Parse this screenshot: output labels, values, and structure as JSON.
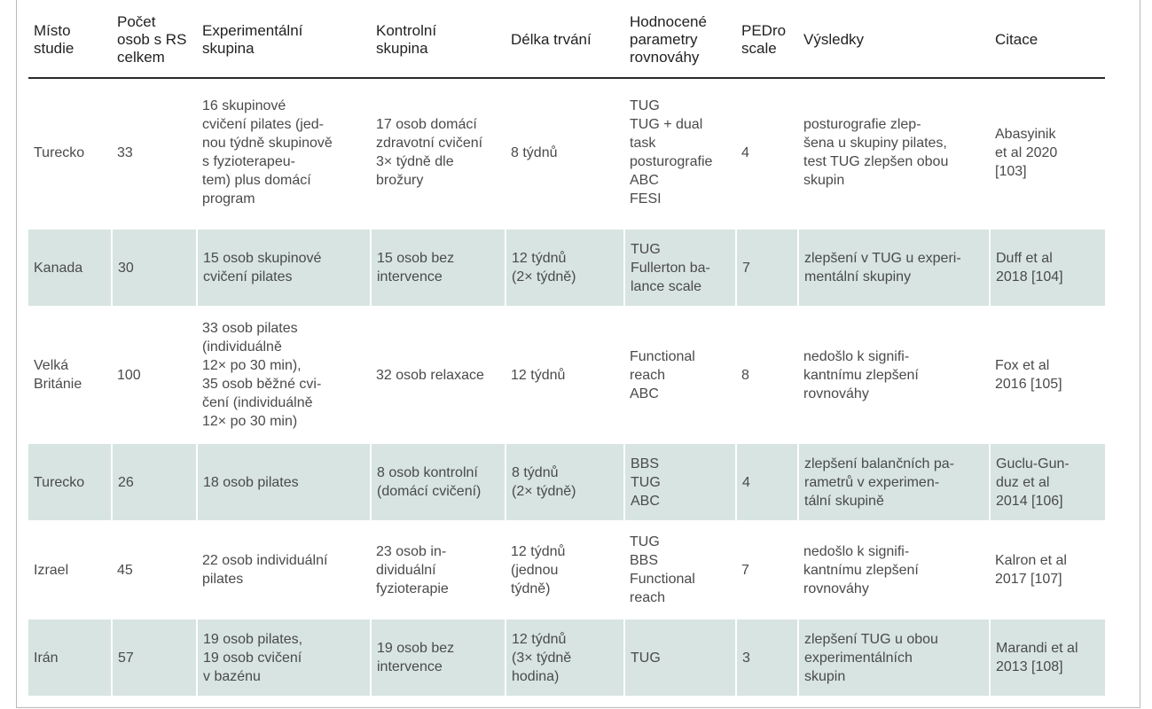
{
  "table": {
    "headers": [
      "Místo\nstudie",
      "Počet\nosob s RS\ncelkem",
      "Experimentální\nskupina",
      "Kontrolní\nskupina",
      "Délka trvání",
      "Hodnocené\nparametry\nrovnováhy",
      "PEDro\nscale",
      "Výsledky",
      "Citace"
    ],
    "rows": [
      {
        "misto": "Turecko",
        "pocet": "33",
        "experimentalni": "16 skupinové\ncvičení pilates (jed-\nnou týdně skupinově\ns fyzioterapeu-\ntem) plus domácí\nprogram",
        "kontrolni": "17 osob domácí\nzdravotní cvičení\n3× týdně dle\nbrožury",
        "delka": "8 týdnů",
        "parametry": "TUG\nTUG + dual\ntask\nposturografie\nABC\nFESI",
        "pedro": "4",
        "vysledky": "posturografie zlep-\nšena u skupiny pilates,\ntest TUG zlepšen obou\nskupin",
        "citace": "Abasyinik\net al 2020\n[103]"
      },
      {
        "misto": "Kanada",
        "pocet": "30",
        "experimentalni": "15 osob skupinové\ncvičení pilates",
        "kontrolni": "15 osob bez\nintervence",
        "delka": "12 týdnů\n(2× týdně)",
        "parametry": "TUG\nFullerton ba-\nlance scale",
        "pedro": "7",
        "vysledky": "zlepšení v TUG u experi-\nmentální skupiny",
        "citace": "Duff et al\n2018 [104]"
      },
      {
        "misto": "Velká\nBritánie",
        "pocet": "100",
        "experimentalni": "33 osob pilates\n(individuálně\n12× po 30 min),\n35 osob běžné cvi-\nčení (individuálně\n12× po 30 min)",
        "kontrolni": "32 osob relaxace",
        "delka": "12 týdnů",
        "parametry": "Functional\nreach\nABC",
        "pedro": "8",
        "vysledky": "nedošlo k signifi-\nkantnímu zlepšení\nrovnováhy",
        "citace": "Fox et al\n2016 [105]"
      },
      {
        "misto": "Turecko",
        "pocet": "26",
        "experimentalni": "18 osob pilates",
        "kontrolni": "8 osob kontrolní\n(domácí cvičení)",
        "delka": "8 týdnů\n(2× týdně)",
        "parametry": "BBS\nTUG\nABC",
        "pedro": "4",
        "vysledky": "zlepšení balančních pa-\nrametrů v experimen-\ntální skupině",
        "citace": "Guclu-Gun-\nduz et al\n2014 [106]"
      },
      {
        "misto": "Izrael",
        "pocet": "45",
        "experimentalni": "22 osob individuální\npilates",
        "kontrolni": "23 osob in-\ndividuální\nfyzioterapie",
        "delka": "12 týdnů\n(jednou\ntýdně)",
        "parametry": "TUG\nBBS\nFunctional\nreach",
        "pedro": "7",
        "vysledky": "nedošlo k signifi-\nkantnímu zlepšení\nrovnováhy",
        "citace": "Kalron et al\n2017 [107]"
      },
      {
        "misto": "Irán",
        "pocet": "57",
        "experimentalni": "19 osob pilates,\n19 osob cvičení\nv bazénu",
        "kontrolni": "19 osob bez\nintervence",
        "delka": "12 týdnů\n(3× týdně\nhodina)",
        "parametry": "TUG",
        "pedro": "3",
        "vysledky": "zlepšení TUG u obou\nexperimentálních\nskupin",
        "citace": "Marandi et al\n2013 [108]"
      }
    ]
  }
}
